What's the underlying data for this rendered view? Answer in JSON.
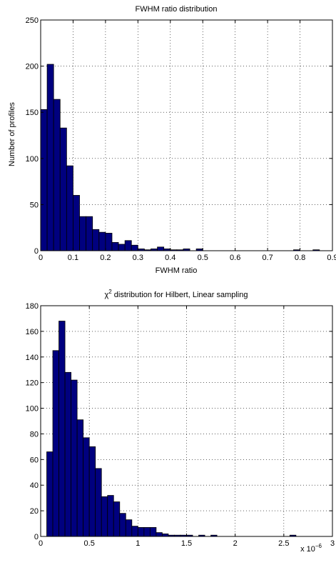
{
  "chart_data": [
    {
      "type": "bar",
      "title": "FWHM ratio distribution",
      "xlabel": "FWHM ratio",
      "ylabel": "Number of profiles",
      "xlim": [
        0,
        0.9
      ],
      "ylim": [
        0,
        250
      ],
      "xticks": [
        "0",
        "0.1",
        "0.2",
        "0.3",
        "0.4",
        "0.5",
        "0.6",
        "0.7",
        "0.8",
        "0.9"
      ],
      "yticks": [
        "0",
        "50",
        "100",
        "150",
        "200",
        "250"
      ],
      "grid": true,
      "bar_color": "#00007f",
      "bin_width": 0.02,
      "bin_start": 0,
      "values": [
        153,
        202,
        164,
        133,
        92,
        60,
        37,
        37,
        23,
        20,
        19,
        9,
        7,
        11,
        6,
        2,
        1,
        2,
        4,
        2,
        1,
        1,
        2,
        0,
        2,
        0,
        0,
        0,
        0,
        0,
        0,
        0,
        0,
        0,
        0,
        0,
        0,
        0,
        0,
        1,
        0,
        0,
        1,
        0
      ]
    },
    {
      "type": "bar",
      "title": "χ distribution for Hilbert, Linear sampling",
      "title_parts": {
        "before": "χ",
        "sup": "2",
        "after": " distribution for Hilbert, Linear sampling"
      },
      "xlabel": "",
      "ylabel": "",
      "xlim": [
        0,
        3
      ],
      "ylim": [
        0,
        180
      ],
      "xticks": [
        "0",
        "0.5",
        "1",
        "1.5",
        "2",
        "2.5",
        "3"
      ],
      "yticks": [
        "0",
        "20",
        "40",
        "60",
        "80",
        "100",
        "120",
        "140",
        "160",
        "180"
      ],
      "x_multiplier": {
        "base": "x 10",
        "exp": "−6"
      },
      "grid": true,
      "bar_color": "#00007f",
      "bin_width": 0.0625,
      "bin_start": 0.0625,
      "values": [
        66,
        145,
        168,
        128,
        122,
        91,
        77,
        70,
        53,
        31,
        32,
        27,
        18,
        13,
        8,
        7,
        7,
        7,
        3,
        2,
        1,
        1,
        1,
        1,
        0,
        1,
        0,
        1,
        0,
        0,
        0,
        0,
        0,
        0,
        0,
        0,
        0,
        0,
        0,
        0,
        1
      ]
    }
  ]
}
